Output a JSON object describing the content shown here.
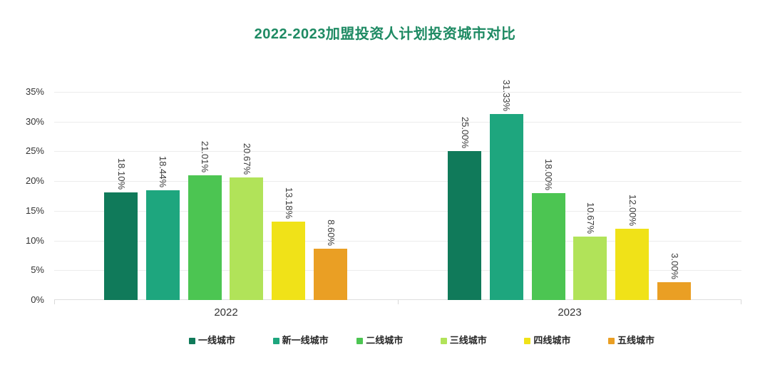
{
  "title": "2022-2023加盟投资人计划投资城市对比",
  "title_color": "#1e8a63",
  "chart_data": {
    "type": "bar",
    "title": "2022-2023加盟投资人计划投资城市对比",
    "categories": [
      "2022",
      "2023"
    ],
    "series": [
      {
        "name": "一线城市",
        "color": "#107a5a",
        "values": [
          18.1,
          25.0
        ],
        "labels": [
          "18.10%",
          "25.00%"
        ]
      },
      {
        "name": "新一线城市",
        "color": "#1ea67e",
        "values": [
          18.44,
          31.33
        ],
        "labels": [
          "18.44%",
          "31.33%"
        ]
      },
      {
        "name": "二线城市",
        "color": "#4cc552",
        "values": [
          21.01,
          18.0
        ],
        "labels": [
          "21.01%",
          "18.00%"
        ]
      },
      {
        "name": "三线城市",
        "color": "#b1e359",
        "values": [
          20.67,
          10.67
        ],
        "labels": [
          "20.67%",
          "10.67%"
        ]
      },
      {
        "name": "四线城市",
        "color": "#f0e218",
        "values": [
          13.18,
          12.0
        ],
        "labels": [
          "13.18%",
          "12.00%"
        ]
      },
      {
        "name": "五线城市",
        "color": "#ea9f24",
        "values": [
          8.6,
          3.0
        ],
        "labels": [
          "8.60%",
          "3.00%"
        ]
      }
    ],
    "ylim": [
      0,
      35
    ],
    "ytick_values": [
      0,
      5,
      10,
      15,
      20,
      25,
      30,
      35
    ],
    "yticks": [
      "0%",
      "5%",
      "10%",
      "15%",
      "20%",
      "25%",
      "30%",
      "35%"
    ],
    "grid": true,
    "legend_position": "bottom",
    "legend": [
      "一线城市",
      "新一线城市",
      "二线城市",
      "三线城市",
      "四线城市",
      "五线城市"
    ]
  }
}
